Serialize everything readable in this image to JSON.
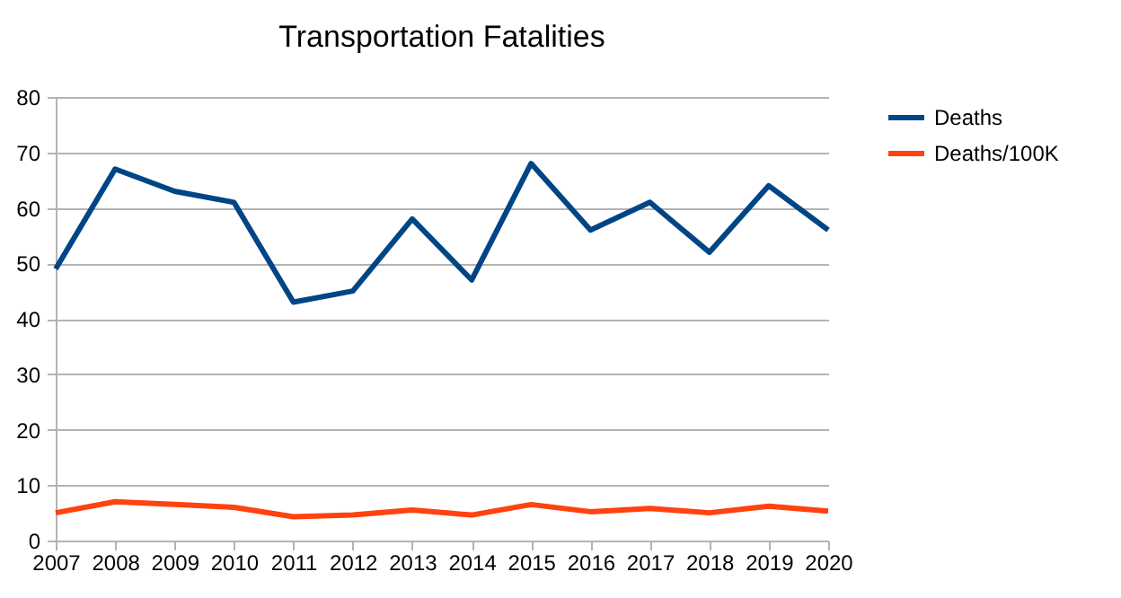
{
  "chart_data": {
    "type": "line",
    "title": "Transportation Fatalities",
    "categories": [
      "2007",
      "2008",
      "2009",
      "2010",
      "2011",
      "2012",
      "2013",
      "2014",
      "2015",
      "2016",
      "2017",
      "2018",
      "2019",
      "2020"
    ],
    "series": [
      {
        "name": "Deaths",
        "color": "#004586",
        "values": [
          49,
          67,
          63,
          61,
          43,
          45,
          58,
          47,
          68,
          56,
          61,
          52,
          64,
          56
        ]
      },
      {
        "name": "Deaths/100K",
        "color": "#ff420e",
        "values": [
          5,
          7,
          6.5,
          6,
          4.3,
          4.6,
          5.5,
          4.6,
          6.5,
          5.2,
          5.8,
          5,
          6.2,
          5.3
        ]
      }
    ],
    "ylim": [
      0,
      80
    ],
    "yticks": [
      0,
      10,
      20,
      30,
      40,
      50,
      60,
      70,
      80
    ],
    "grid": "y",
    "legend": "right",
    "marker": "none",
    "line_style": "solid"
  }
}
